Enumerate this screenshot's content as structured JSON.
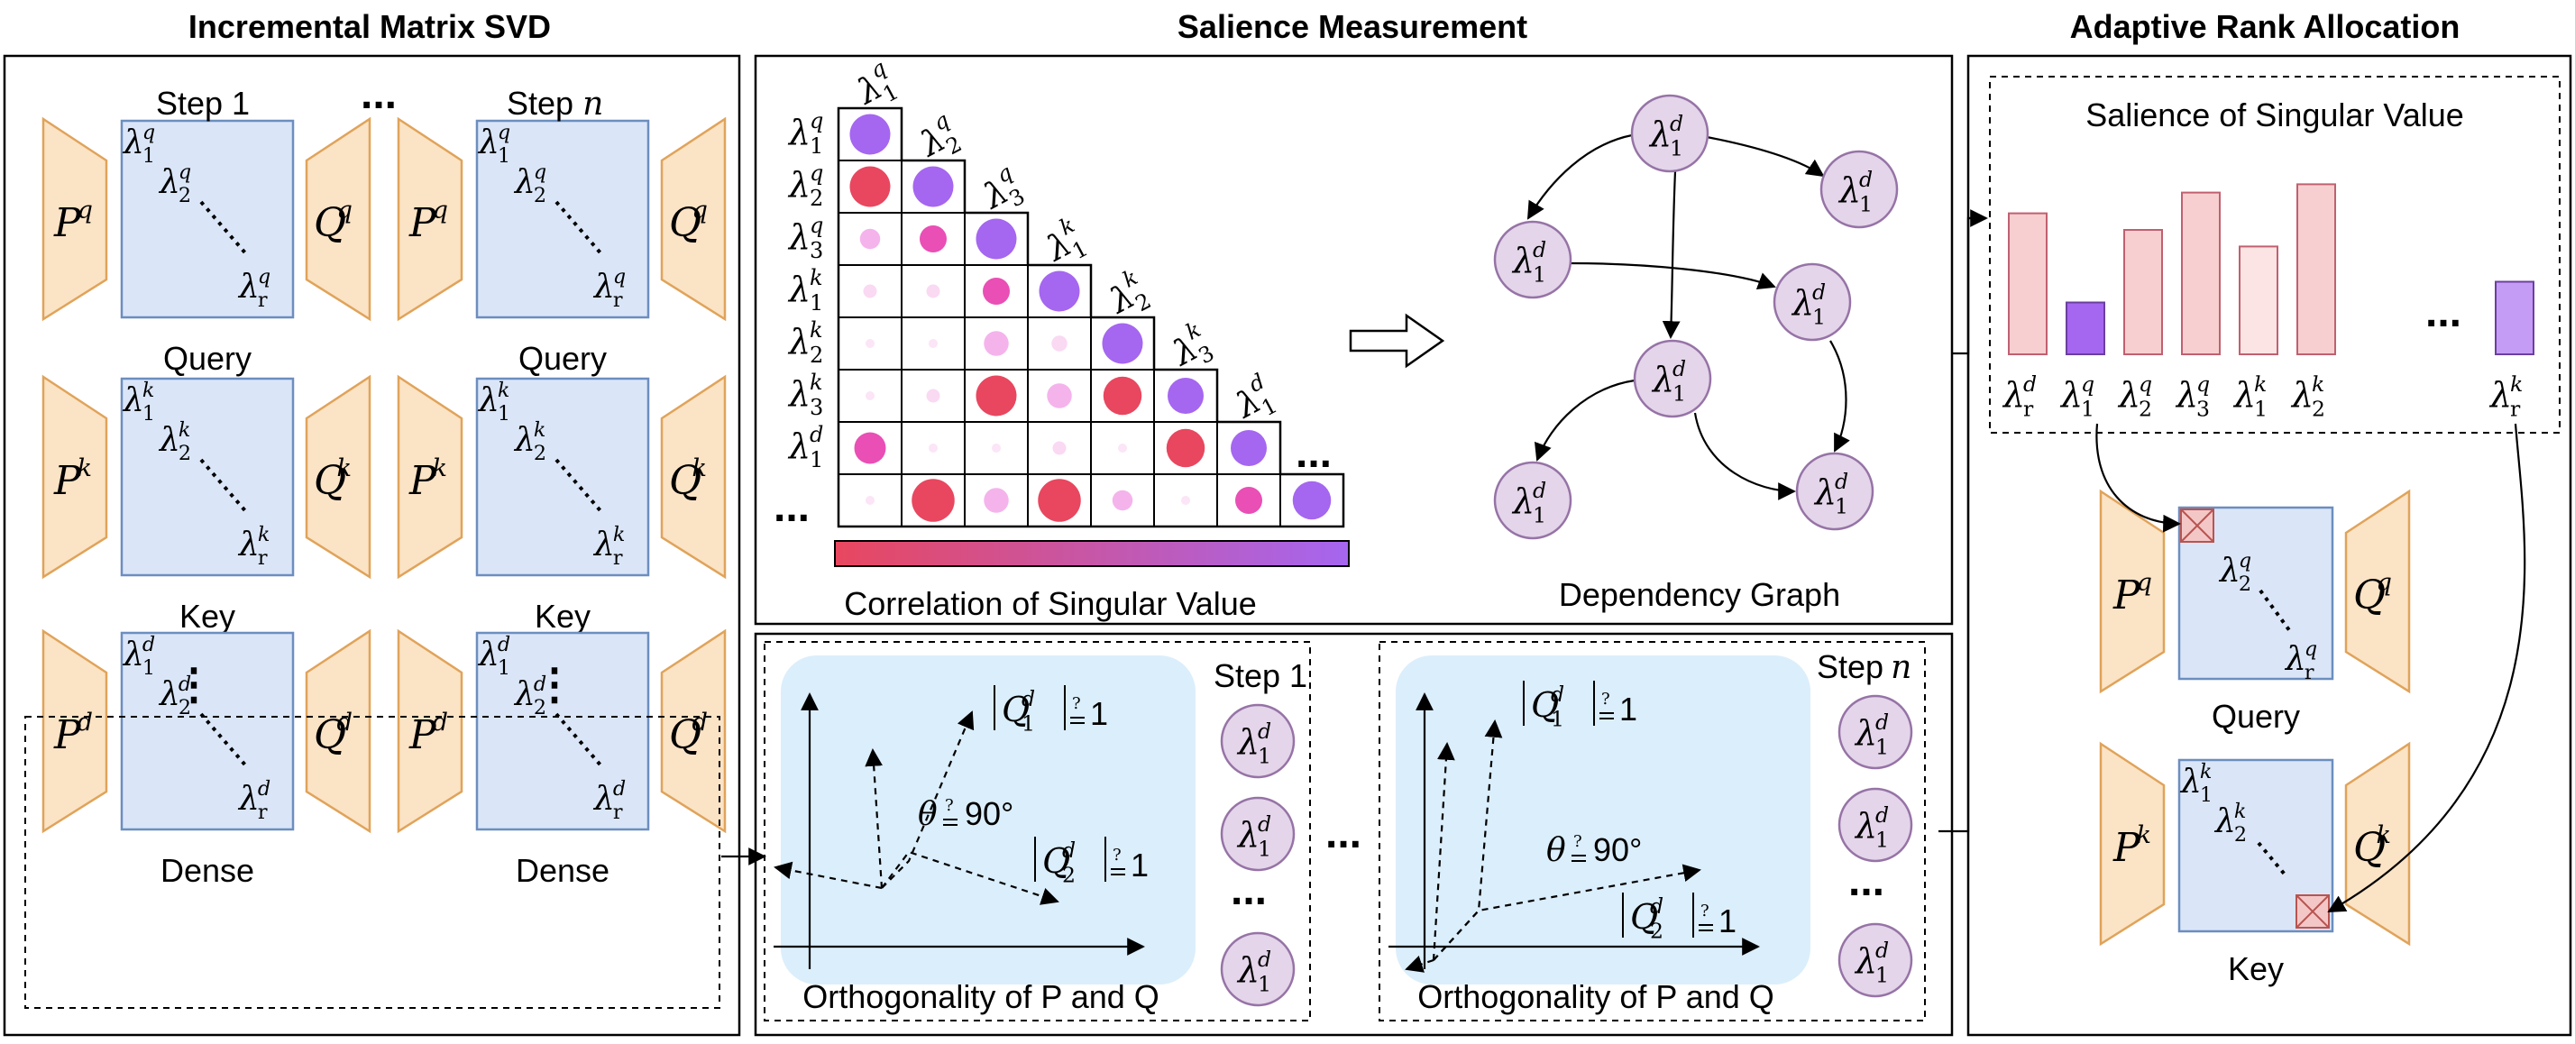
{
  "sections": {
    "left_title": "Incremental Matrix SVD",
    "middle_title": "Salience Measurement",
    "right_title": "Adaptive Rank Allocation"
  },
  "svd": {
    "step1": "Step 1",
    "stepn_word": "Step",
    "stepn_var": "n",
    "ellipsis": "...",
    "vdots": "⋮",
    "rows": [
      {
        "label": "Query",
        "sup": "q"
      },
      {
        "label": "Key",
        "sup": "k"
      },
      {
        "label": "Dense",
        "sup": "d"
      }
    ],
    "P": "P",
    "Q": "Q",
    "lambda": "λ",
    "sub1": "1",
    "sub2": "2",
    "subr": "r"
  },
  "correlation": {
    "caption": "Correlation of Singular Value",
    "row_labels": [
      {
        "sup": "q",
        "sub": "1"
      },
      {
        "sup": "q",
        "sub": "2"
      },
      {
        "sup": "q",
        "sub": "3"
      },
      {
        "sup": "k",
        "sub": "1"
      },
      {
        "sup": "k",
        "sub": "2"
      },
      {
        "sup": "k",
        "sub": "3"
      },
      {
        "sup": "d",
        "sub": "1"
      }
    ],
    "col_labels": [
      {
        "sup": "q",
        "sub": "1"
      },
      {
        "sup": "q",
        "sub": "2"
      },
      {
        "sup": "q",
        "sub": "3"
      },
      {
        "sup": "k",
        "sub": "1"
      },
      {
        "sup": "k",
        "sub": "2"
      },
      {
        "sup": "k",
        "sub": "3"
      },
      {
        "sup": "d",
        "sub": "1"
      }
    ],
    "row_ellipsis": "...",
    "col_ellipsis": "...",
    "gradient": {
      "start": "#e8475f",
      "end": "#a566f0"
    },
    "cells": [
      [
        {
          "s": 0.9,
          "c": "#a566f0"
        }
      ],
      [
        {
          "s": 0.9,
          "c": "#e8475f"
        },
        {
          "s": 0.9,
          "c": "#a566f0"
        }
      ],
      [
        {
          "s": 0.45,
          "c": "#f5b3ec"
        },
        {
          "s": 0.6,
          "c": "#e94fb5"
        },
        {
          "s": 0.9,
          "c": "#a566f0"
        }
      ],
      [
        {
          "s": 0.3,
          "c": "#fad9f3"
        },
        {
          "s": 0.3,
          "c": "#fad9f3"
        },
        {
          "s": 0.6,
          "c": "#e94fb5"
        },
        {
          "s": 0.9,
          "c": "#a566f0"
        }
      ],
      [
        {
          "s": 0.2,
          "c": "#fbe5f6"
        },
        {
          "s": 0.2,
          "c": "#fbe5f6"
        },
        {
          "s": 0.55,
          "c": "#f5b3ec"
        },
        {
          "s": 0.35,
          "c": "#fad9f3"
        },
        {
          "s": 0.9,
          "c": "#a566f0"
        }
      ],
      [
        {
          "s": 0.2,
          "c": "#fbe5f6"
        },
        {
          "s": 0.3,
          "c": "#fad9f3"
        },
        {
          "s": 0.9,
          "c": "#e8475f"
        },
        {
          "s": 0.55,
          "c": "#f5b3ec"
        },
        {
          "s": 0.85,
          "c": "#e8475f"
        },
        {
          "s": 0.8,
          "c": "#a566f0"
        }
      ],
      [
        {
          "s": 0.7,
          "c": "#e94fb5"
        },
        {
          "s": 0.2,
          "c": "#fbe5f6"
        },
        {
          "s": 0.2,
          "c": "#fbe5f6"
        },
        {
          "s": 0.3,
          "c": "#fad9f3"
        },
        {
          "s": 0.2,
          "c": "#fbe5f6"
        },
        {
          "s": 0.85,
          "c": "#e8475f"
        },
        {
          "s": 0.8,
          "c": "#a566f0"
        }
      ],
      [
        {
          "s": 0.2,
          "c": "#fbe5f6"
        },
        {
          "s": 0.95,
          "c": "#e8475f"
        },
        {
          "s": 0.55,
          "c": "#f5b3ec"
        },
        {
          "s": 0.95,
          "c": "#e8475f"
        },
        {
          "s": 0.45,
          "c": "#f5b3ec"
        },
        {
          "s": 0.2,
          "c": "#fbe5f6"
        },
        {
          "s": 0.6,
          "c": "#e94fb5"
        },
        {
          "s": 0.85,
          "c": "#a566f0"
        }
      ]
    ]
  },
  "graph": {
    "caption": "Dependency Graph",
    "node_sup": "d",
    "node_sub": "1"
  },
  "orthogonality": {
    "caption": "Orthogonality of P and Q",
    "step1": "Step 1",
    "stepn_word": "Step",
    "stepn_var": "n",
    "q1_sup": "d",
    "q1_sub": "1",
    "q2_sup": "d",
    "q2_sub": "2",
    "eq_one": "1",
    "q_mark": "?",
    "theta": "θ",
    "angle": "90°",
    "node_sup": "d",
    "node_sub": "1",
    "ellipsis": "..."
  },
  "allocation": {
    "title": "Salience of Singular Value",
    "bars": [
      {
        "value": 0.68,
        "color": "#f8cfd0",
        "sup": "d",
        "sub": "r"
      },
      {
        "value": 0.25,
        "color": "#a566f0",
        "sup": "q",
        "sub": "1"
      },
      {
        "value": 0.6,
        "color": "#f8cfd0",
        "sup": "q",
        "sub": "2"
      },
      {
        "value": 0.78,
        "color": "#f8cfd0",
        "sup": "q",
        "sub": "3"
      },
      {
        "value": 0.52,
        "color": "#fbe4e3",
        "sup": "k",
        "sub": "1"
      },
      {
        "value": 0.82,
        "color": "#f8cfd0",
        "sup": "k",
        "sub": "2"
      },
      {
        "value": 0.35,
        "color": "#c59cf5",
        "sup": "k",
        "sub": "r"
      }
    ],
    "bar_ellipsis": "...",
    "query_label": "Query",
    "key_label": "Key"
  }
}
